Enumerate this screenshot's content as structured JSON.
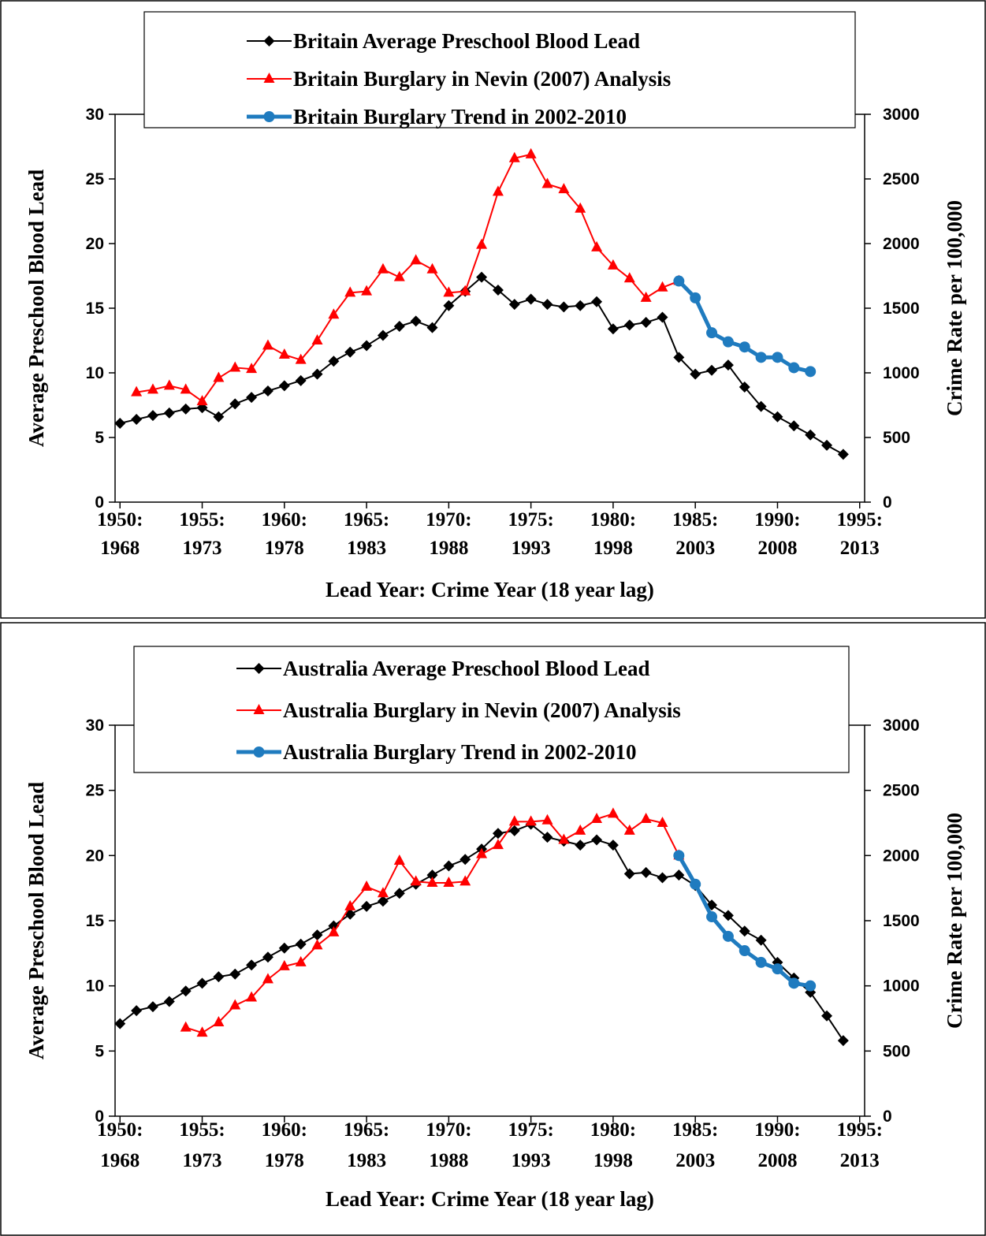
{
  "chart_data": [
    {
      "type": "line",
      "x_label": "Lead Year: Crime Year (18 year lag)",
      "y_label": "Average Preschool Blood Lead",
      "y2_label": "Crime Rate per 100,000",
      "x": [
        1950,
        1951,
        1952,
        1953,
        1954,
        1955,
        1956,
        1957,
        1958,
        1959,
        1960,
        1961,
        1962,
        1963,
        1964,
        1965,
        1966,
        1967,
        1968,
        1969,
        1970,
        1971,
        1972,
        1973,
        1974,
        1975,
        1976,
        1977,
        1978,
        1979,
        1980,
        1981,
        1982,
        1983,
        1984,
        1985,
        1986,
        1987,
        1988,
        1989,
        1990,
        1991,
        1992,
        1993,
        1994
      ],
      "xlim": [
        1949.7,
        1995.3
      ],
      "xticks": [
        {
          "value": 1950,
          "label": "1950:\n1968"
        },
        {
          "value": 1955,
          "label": "1955:\n1973"
        },
        {
          "value": 1960,
          "label": "1960:\n1978"
        },
        {
          "value": 1965,
          "label": "1965:\n1983"
        },
        {
          "value": 1970,
          "label": "1970:\n1988"
        },
        {
          "value": 1975,
          "label": "1975:\n1993"
        },
        {
          "value": 1980,
          "label": "1980:\n1998"
        },
        {
          "value": 1985,
          "label": "1985:\n2003"
        },
        {
          "value": 1990,
          "label": "1990:\n2008"
        },
        {
          "value": 1995,
          "label": "1995:\n2013"
        }
      ],
      "ylim": [
        0,
        30
      ],
      "yticks": [
        0,
        5,
        10,
        15,
        20,
        25,
        30
      ],
      "y2lim": [
        0,
        3000
      ],
      "y2ticks": [
        0,
        500,
        1000,
        1500,
        2000,
        2500,
        3000
      ],
      "series": [
        {
          "name": "Britain Average Preschool Blood Lead",
          "color": "#000000",
          "marker": "diamond",
          "width": 2,
          "values": [
            6.1,
            6.4,
            6.7,
            6.9,
            7.2,
            7.3,
            6.6,
            7.6,
            8.1,
            8.6,
            9.0,
            9.4,
            9.9,
            10.9,
            11.6,
            12.1,
            12.9,
            13.6,
            14.0,
            13.5,
            15.2,
            16.3,
            17.4,
            16.4,
            15.3,
            15.7,
            15.3,
            15.1,
            15.2,
            15.5,
            13.4,
            13.7,
            13.9,
            14.3,
            11.2,
            9.9,
            10.2,
            10.6,
            8.9,
            7.4,
            6.6,
            5.9,
            5.2,
            4.4,
            3.7
          ]
        },
        {
          "name": "Britain Burglary in Nevin (2007) Analysis",
          "color": "#ff0000",
          "marker": "triangle",
          "width": 2,
          "axis": "y2",
          "values": [
            null,
            850,
            870,
            900,
            870,
            780,
            960,
            1040,
            1030,
            1210,
            1140,
            1100,
            1250,
            1450,
            1620,
            1630,
            1800,
            1740,
            1870,
            1800,
            1620,
            1630,
            1990,
            2400,
            2660,
            2690,
            2460,
            2420,
            2270,
            1970,
            1830,
            1730,
            1580,
            1660,
            1710,
            null,
            null,
            null,
            null,
            null,
            null,
            null,
            null,
            null,
            null
          ]
        },
        {
          "name": "Britain Burglary Trend in 2002-2010",
          "color": "#1f7bbf",
          "marker": "circle",
          "width": 5,
          "axis": "y2",
          "values": [
            null,
            null,
            null,
            null,
            null,
            null,
            null,
            null,
            null,
            null,
            null,
            null,
            null,
            null,
            null,
            null,
            null,
            null,
            null,
            null,
            null,
            null,
            null,
            null,
            null,
            null,
            null,
            null,
            null,
            null,
            null,
            null,
            null,
            null,
            1710,
            1580,
            1310,
            1240,
            1200,
            1120,
            1120,
            1040,
            1010,
            null,
            null
          ]
        }
      ]
    },
    {
      "type": "line",
      "x_label": "Lead Year: Crime Year (18 year lag)",
      "y_label": "Average Preschool Blood Lead",
      "y2_label": "Crime Rate per 100,000",
      "x": [
        1950,
        1951,
        1952,
        1953,
        1954,
        1955,
        1956,
        1957,
        1958,
        1959,
        1960,
        1961,
        1962,
        1963,
        1964,
        1965,
        1966,
        1967,
        1968,
        1969,
        1970,
        1971,
        1972,
        1973,
        1974,
        1975,
        1976,
        1977,
        1978,
        1979,
        1980,
        1981,
        1982,
        1983,
        1984,
        1985,
        1986,
        1987,
        1988,
        1989,
        1990,
        1991,
        1992,
        1993,
        1994
      ],
      "xlim": [
        1949.7,
        1995.3
      ],
      "xticks": [
        {
          "value": 1950,
          "label": "1950:\n1968"
        },
        {
          "value": 1955,
          "label": "1955:\n1973"
        },
        {
          "value": 1960,
          "label": "1960:\n1978"
        },
        {
          "value": 1965,
          "label": "1965:\n1983"
        },
        {
          "value": 1970,
          "label": "1970:\n1988"
        },
        {
          "value": 1975,
          "label": "1975:\n1993"
        },
        {
          "value": 1980,
          "label": "1980:\n1998"
        },
        {
          "value": 1985,
          "label": "1985:\n2003"
        },
        {
          "value": 1990,
          "label": "1990:\n2008"
        },
        {
          "value": 1995,
          "label": "1995:\n2013"
        }
      ],
      "ylim": [
        0,
        30
      ],
      "yticks": [
        0,
        5,
        10,
        15,
        20,
        25,
        30
      ],
      "y2lim": [
        0,
        3000
      ],
      "y2ticks": [
        0,
        500,
        1000,
        1500,
        2000,
        2500,
        3000
      ],
      "series": [
        {
          "name": "Australia Average Preschool Blood Lead",
          "color": "#000000",
          "marker": "diamond",
          "width": 2,
          "values": [
            7.1,
            8.1,
            8.4,
            8.8,
            9.6,
            10.2,
            10.7,
            10.9,
            11.6,
            12.2,
            12.9,
            13.2,
            13.9,
            14.6,
            15.5,
            16.1,
            16.5,
            17.1,
            17.8,
            18.5,
            19.2,
            19.7,
            20.5,
            21.7,
            21.9,
            22.4,
            21.4,
            21.1,
            20.8,
            21.2,
            20.8,
            18.6,
            18.7,
            18.3,
            18.5,
            17.7,
            16.2,
            15.4,
            14.2,
            13.5,
            11.8,
            10.6,
            9.5,
            7.7,
            5.8
          ]
        },
        {
          "name": "Australia Burglary in Nevin (2007) Analysis",
          "color": "#ff0000",
          "marker": "triangle",
          "width": 2,
          "axis": "y2",
          "values": [
            null,
            null,
            null,
            null,
            680,
            640,
            720,
            850,
            910,
            1050,
            1150,
            1180,
            1310,
            1410,
            1610,
            1760,
            1710,
            1960,
            1800,
            1790,
            1790,
            1800,
            2010,
            2080,
            2260,
            2260,
            2270,
            2120,
            2190,
            2280,
            2320,
            2190,
            2280,
            2250,
            2000,
            null,
            null,
            null,
            null,
            null,
            null,
            null,
            null,
            null,
            null
          ]
        },
        {
          "name": "Australia Burglary Trend in 2002-2010",
          "color": "#1f7bbf",
          "marker": "circle",
          "width": 5,
          "axis": "y2",
          "values": [
            null,
            null,
            null,
            null,
            null,
            null,
            null,
            null,
            null,
            null,
            null,
            null,
            null,
            null,
            null,
            null,
            null,
            null,
            null,
            null,
            null,
            null,
            null,
            null,
            null,
            null,
            null,
            null,
            null,
            null,
            null,
            null,
            null,
            null,
            2000,
            1780,
            1530,
            1380,
            1270,
            1180,
            1130,
            1020,
            1000,
            null,
            null
          ]
        }
      ]
    }
  ]
}
